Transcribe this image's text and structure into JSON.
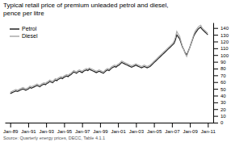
{
  "chart_data": {
    "type": "line",
    "title": "Typical retail price of premium unleaded petrol and diesel,",
    "subtitle": "pence per litre",
    "source": "Source: Quarterly energy prices, DECC, Table 4.1.1",
    "x": [
      0,
      0.078571,
      0.157143,
      0.235714,
      0.314286,
      0.392857,
      0.471429,
      0.55,
      0.628571,
      0.707143,
      0.785714,
      0.864286,
      0.942857,
      1.021429,
      1.1,
      1.178571,
      1.257143,
      1.335714,
      1.414286,
      1.492857,
      1.571429,
      1.65,
      1.728571,
      1.807143,
      1.885714,
      1.964286,
      2.042857,
      2.121429,
      2.2,
      2.278571,
      2.357143,
      2.435714,
      2.514286,
      2.592857,
      2.671429,
      2.75,
      2.828571,
      2.907143,
      2.985714,
      3.064286,
      3.142857,
      3.221429,
      3.3,
      3.378571,
      3.457143,
      3.535714,
      3.614286,
      3.692857,
      3.771429,
      3.85,
      3.928571,
      4.007143,
      4.085714,
      4.164286,
      4.242857,
      4.321429,
      4.4,
      4.478571,
      4.557143,
      4.635714,
      4.714286,
      4.792857,
      4.871429,
      4.95,
      5.028571,
      5.107143,
      5.185714,
      5.264286,
      5.342857,
      5.421429,
      5.5,
      5.578571,
      5.657143,
      5.735714,
      5.814286,
      5.892857,
      5.971429,
      6.05,
      6.128571,
      6.207143,
      6.285714,
      6.364286,
      6.442857,
      6.521429,
      6.6,
      6.678571,
      6.757143,
      6.835714,
      6.914286,
      6.992857,
      7.071429,
      7.15,
      7.228571,
      7.307143,
      7.385714,
      7.464286,
      7.542857,
      7.621429,
      7.7,
      7.778571,
      7.857143,
      7.935714,
      8.014286,
      8.092857,
      8.171429,
      8.25,
      8.328571,
      8.407143,
      8.485714,
      8.564286,
      8.642857,
      8.721429,
      8.8,
      8.878571,
      8.957143,
      9.035714,
      9.114286,
      9.192857,
      9.271429,
      9.35,
      9.428571,
      9.507143,
      9.585714,
      9.664286,
      9.742857,
      9.821429,
      9.9,
      9.978571,
      10.057143,
      10.135714,
      10.214286,
      10.292857,
      10.371429,
      10.45,
      10.528571,
      10.607143,
      10.685714,
      10.764286,
      10.842857,
      10.921429,
      11
    ],
    "xlim": [
      -0.3,
      11.3
    ],
    "xticks": [
      {
        "value": 0,
        "label": "Jan-89"
      },
      {
        "value": 1,
        "label": "Jan-91"
      },
      {
        "value": 2,
        "label": "Jan-93"
      },
      {
        "value": 3,
        "label": "Jan-95"
      },
      {
        "value": 4,
        "label": "Jan-97"
      },
      {
        "value": 5,
        "label": "Jan-99"
      },
      {
        "value": 6,
        "label": "Jan-01"
      },
      {
        "value": 7,
        "label": "Jan-03"
      },
      {
        "value": 8,
        "label": "Jan-05"
      },
      {
        "value": 9,
        "label": "Jan-07"
      },
      {
        "value": 10,
        "label": "Jan-09"
      },
      {
        "value": 11,
        "label": "Jan-11"
      }
    ],
    "ylim": [
      0,
      148
    ],
    "yticks": [
      0,
      10,
      20,
      30,
      40,
      50,
      60,
      70,
      80,
      90,
      100,
      110,
      120,
      130,
      140
    ],
    "grid": false,
    "legend": "upper left",
    "series": [
      {
        "name": "Petrol",
        "color": "#222222",
        "values": [
          43,
          44,
          45,
          46,
          47,
          46,
          47,
          48,
          49,
          50,
          49,
          48,
          49,
          50,
          52,
          51,
          52,
          53,
          54,
          55,
          54,
          53,
          55,
          56,
          57,
          56,
          58,
          59,
          61,
          60,
          59,
          61,
          63,
          62,
          64,
          65,
          66,
          65,
          67,
          68,
          69,
          68,
          70,
          71,
          73,
          75,
          74,
          73,
          75,
          76,
          75,
          74,
          76,
          77,
          78,
          77,
          79,
          78,
          77,
          76,
          75,
          74,
          75,
          76,
          75,
          74,
          73,
          75,
          77,
          78,
          77,
          79,
          81,
          82,
          83,
          82,
          84,
          85,
          87,
          89,
          88,
          87,
          86,
          85,
          84,
          83,
          82,
          83,
          84,
          85,
          84,
          83,
          82,
          81,
          82,
          83,
          82,
          81,
          82,
          83,
          85,
          87,
          89,
          91,
          93,
          95,
          97,
          99,
          101,
          103,
          105,
          107,
          109,
          111,
          113,
          115,
          117,
          122,
          130,
          127,
          124,
          118,
          112,
          108,
          103,
          100,
          105,
          110,
          116,
          122,
          128,
          132,
          135,
          138,
          140,
          141,
          138,
          136,
          134,
          132,
          130
        ]
      },
      {
        "name": "Diesel",
        "color": "#aaaaaa",
        "values": [
          45,
          46,
          47,
          48,
          49,
          48,
          49,
          50,
          51,
          52,
          51,
          50,
          51,
          52,
          54,
          53,
          54,
          55,
          56,
          57,
          56,
          55,
          57,
          58,
          59,
          58,
          60,
          61,
          63,
          62,
          61,
          63,
          65,
          64,
          66,
          67,
          68,
          67,
          69,
          70,
          71,
          70,
          72,
          73,
          75,
          77,
          76,
          75,
          77,
          78,
          77,
          76,
          78,
          79,
          80,
          79,
          81,
          80,
          79,
          78,
          77,
          76,
          77,
          78,
          77,
          76,
          75,
          77,
          79,
          80,
          79,
          81,
          83,
          84,
          85,
          84,
          86,
          87,
          89,
          91,
          90,
          89,
          88,
          87,
          86,
          85,
          84,
          85,
          86,
          87,
          86,
          85,
          84,
          83,
          84,
          85,
          84,
          83,
          84,
          85,
          87,
          89,
          91,
          93,
          95,
          97,
          99,
          101,
          103,
          105,
          107,
          109,
          111,
          113,
          115,
          117,
          120,
          126,
          135,
          131,
          128,
          120,
          113,
          108,
          102,
          98,
          104,
          110,
          117,
          123,
          130,
          135,
          138,
          141,
          143,
          144,
          140,
          138,
          136,
          134,
          132
        ]
      }
    ]
  }
}
